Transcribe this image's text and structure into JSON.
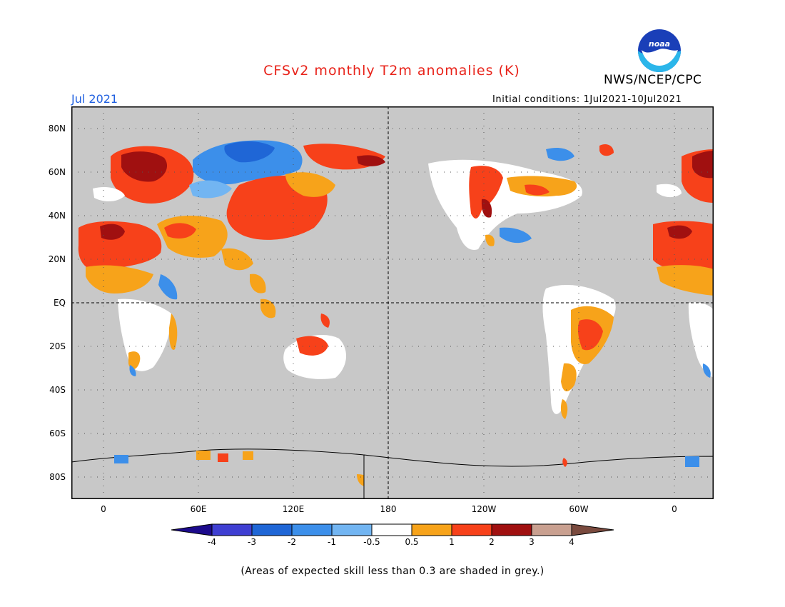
{
  "title": "CFSv2 monthly T2m anomalies (K)",
  "agency": "NWS/NCEP/CPC",
  "logo_text": "noaa",
  "month": "Jul 2021",
  "initial_conditions": "Initial conditions: 1Jul2021-10Jul2021",
  "lat_labels": [
    "80N",
    "60N",
    "40N",
    "20N",
    "EQ",
    "20S",
    "40S",
    "60S",
    "80S"
  ],
  "lon_labels": [
    "0",
    "60E",
    "120E",
    "180",
    "120W",
    "60W",
    "0"
  ],
  "colorbar": {
    "labels": [
      "-4",
      "-3",
      "-2",
      "-1",
      "-0.5",
      "0.5",
      "1",
      "2",
      "3",
      "4"
    ],
    "colors": [
      "#1c0a8c",
      "#3f3fd2",
      "#1f66d6",
      "#3c8fea",
      "#72b5f2",
      "#ffffff",
      "#f7a31a",
      "#f7411a",
      "#a01010",
      "#c9a090",
      "#7a4a3e"
    ]
  },
  "colors": {
    "grey_shade": "#c8c8c8",
    "title": "#e8231a",
    "month": "#2060e0"
  },
  "footnote": "(Areas of expected skill less than 0.3 are shaded in grey.)"
}
